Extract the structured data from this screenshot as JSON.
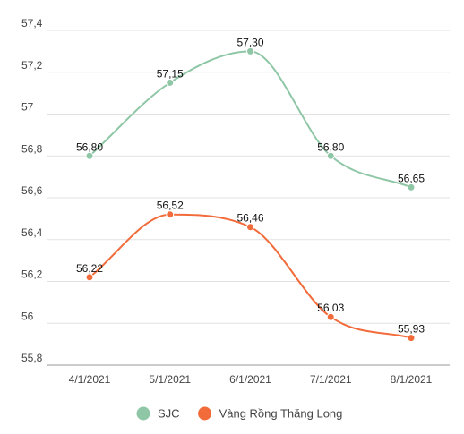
{
  "chart_data": {
    "type": "line",
    "categories": [
      "4/1/2021",
      "5/1/2021",
      "6/1/2021",
      "7/1/2021",
      "8/1/2021"
    ],
    "series": [
      {
        "name": "SJC",
        "color": "#8fc7a6",
        "values": [
          56.8,
          57.15,
          57.3,
          56.8,
          56.65
        ],
        "labels": [
          "56,80",
          "57,15",
          "57,30",
          "56,80",
          "56,65"
        ]
      },
      {
        "name": "Vàng Rồng Thăng Long",
        "color": "#f26b3a",
        "values": [
          56.22,
          56.52,
          56.46,
          56.03,
          55.93
        ],
        "labels": [
          "56,22",
          "56,52",
          "56,46",
          "56,03",
          "55,93"
        ]
      }
    ],
    "yticks": [
      55.8,
      56.0,
      56.2,
      56.4,
      56.6,
      56.8,
      57.0,
      57.2,
      57.4
    ],
    "ytick_labels": [
      "55,8",
      "56",
      "56,2",
      "56,4",
      "56,6",
      "56,8",
      "57",
      "57,2",
      "57,4"
    ],
    "ylim": [
      55.8,
      57.4
    ],
    "grid": true,
    "legend": "bottom"
  }
}
